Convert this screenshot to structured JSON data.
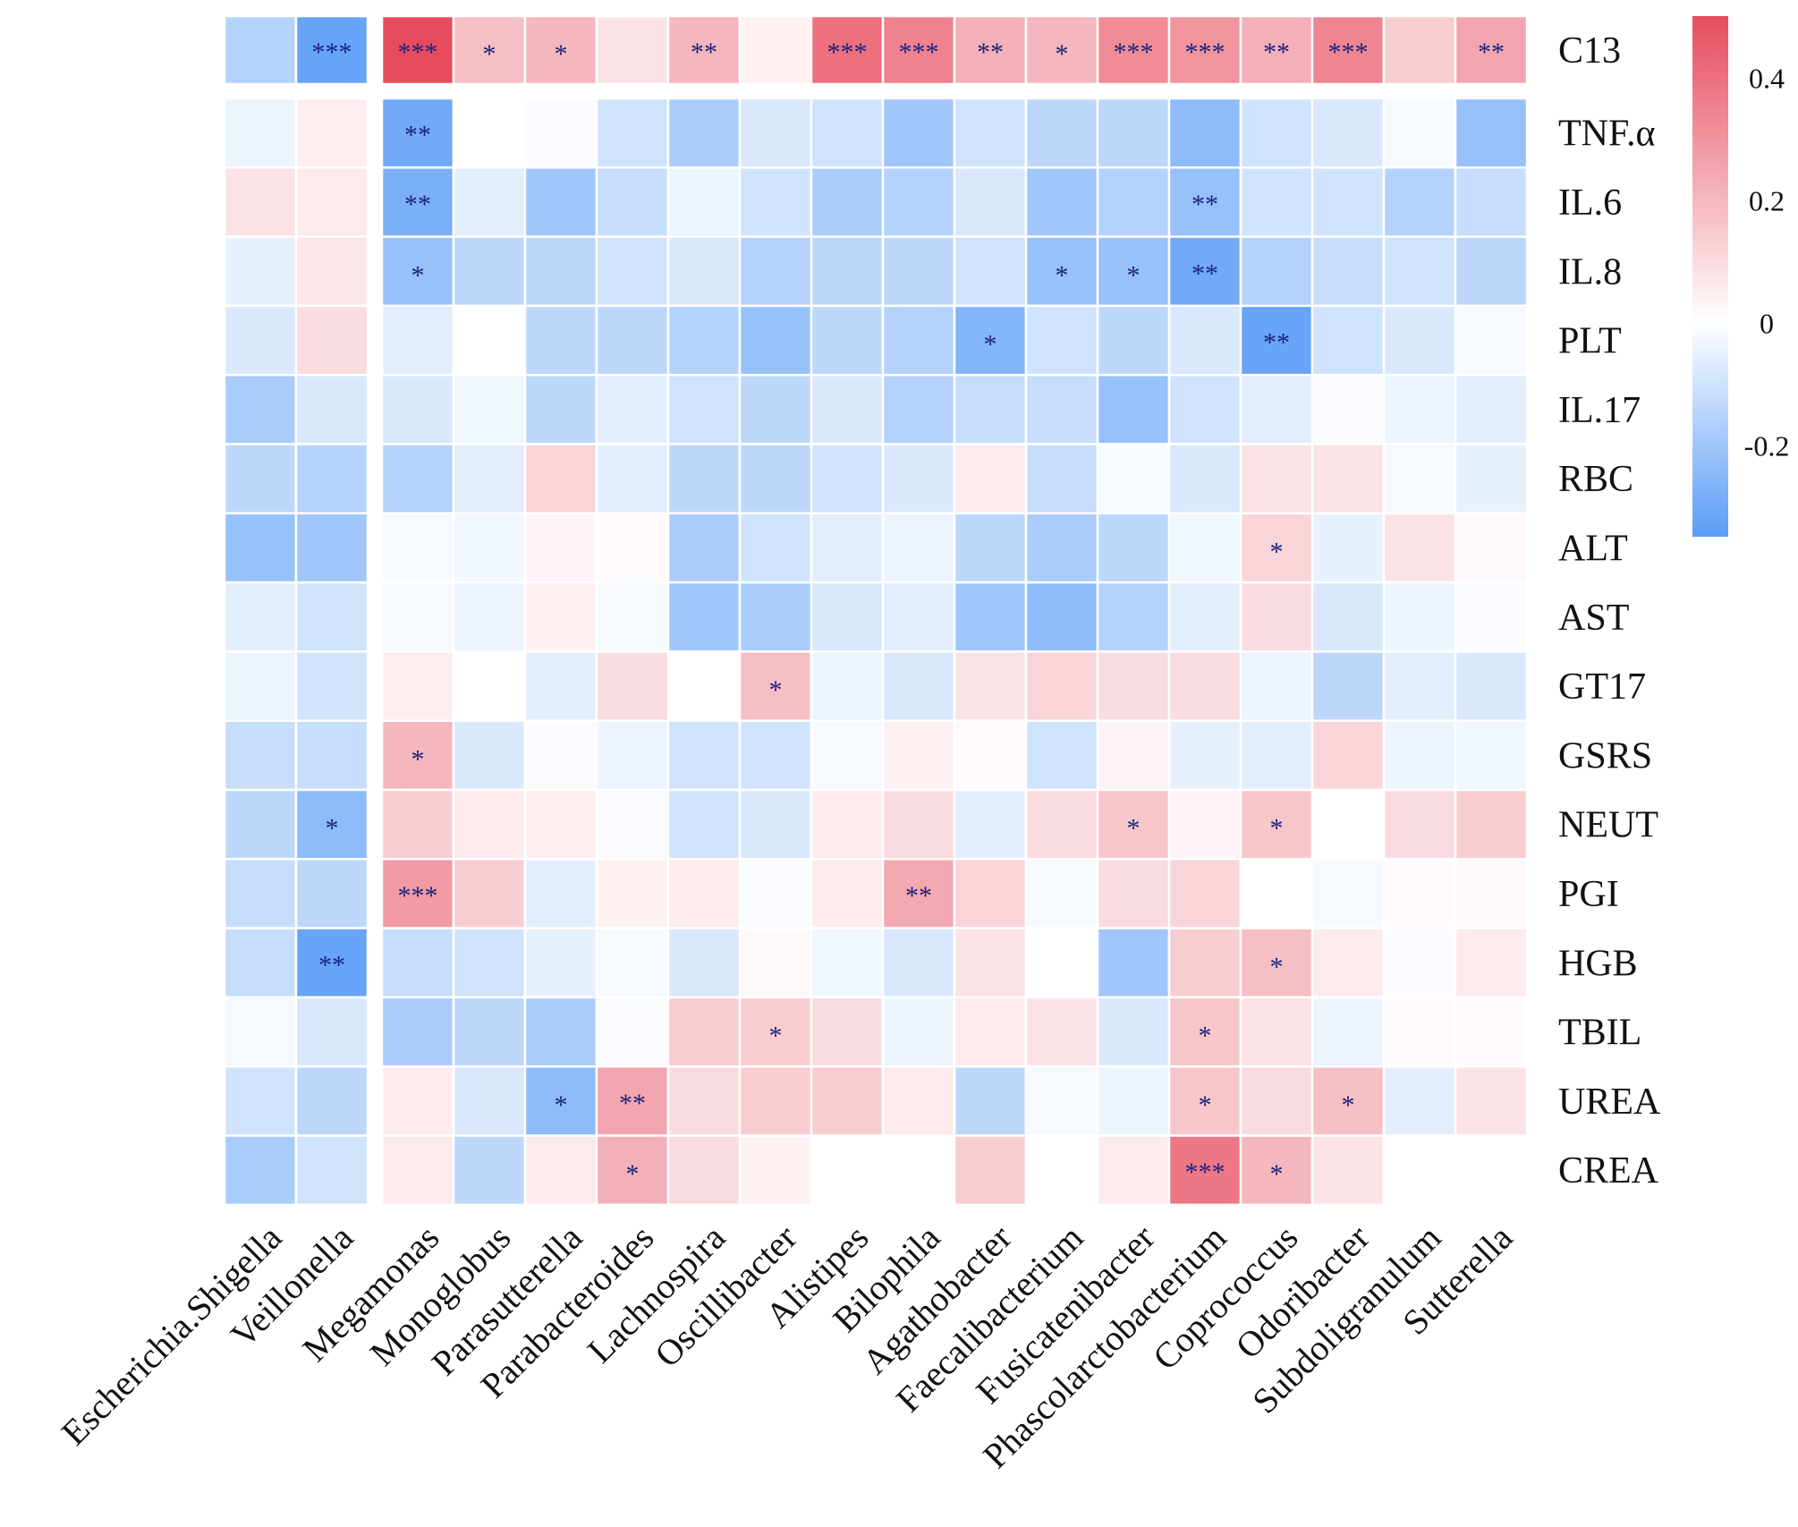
{
  "chart_data": {
    "type": "heatmap",
    "title": "",
    "columns": [
      "Escherichia.Shigella",
      "Veillonella",
      "Megamonas",
      "Monoglobus",
      "Parasutterella",
      "Parabacteroides",
      "Lachnospira",
      "Oscillibacter",
      "Alistipes",
      "Bilophila",
      "Agathobacter",
      "Faecalibacterium",
      "Fusicatenibacter",
      "Phascolarctobacterium",
      "Coprococcus",
      "Odoribacter",
      "Subdoligranulum",
      "Sutterella"
    ],
    "rows": [
      "C13",
      "TNF.α",
      "IL.6",
      "IL.8",
      "PLT",
      "IL.17",
      "RBC",
      "ALT",
      "AST",
      "GT17",
      "GSRS",
      "NEUT",
      "PGI",
      "HGB",
      "TBIL",
      "UREA",
      "CREA"
    ],
    "values": [
      [
        -0.16,
        -0.32,
        0.5,
        0.18,
        0.2,
        0.08,
        0.2,
        0.04,
        0.4,
        0.35,
        0.22,
        0.2,
        0.32,
        0.3,
        0.22,
        0.34,
        0.14,
        0.25
      ],
      [
        -0.04,
        0.05,
        -0.3,
        0.0,
        -0.01,
        -0.1,
        -0.18,
        -0.08,
        -0.1,
        -0.2,
        -0.1,
        -0.14,
        -0.14,
        -0.24,
        -0.1,
        -0.08,
        -0.02,
        -0.22
      ],
      [
        0.08,
        0.06,
        -0.28,
        -0.06,
        -0.2,
        -0.12,
        -0.04,
        -0.1,
        -0.18,
        -0.16,
        -0.08,
        -0.2,
        -0.16,
        -0.22,
        -0.1,
        -0.1,
        -0.16,
        -0.12
      ],
      [
        -0.05,
        0.07,
        -0.22,
        -0.14,
        -0.14,
        -0.1,
        -0.08,
        -0.16,
        -0.14,
        -0.14,
        -0.1,
        -0.22,
        -0.22,
        -0.3,
        -0.16,
        -0.12,
        -0.1,
        -0.14
      ],
      [
        -0.08,
        0.1,
        -0.06,
        0.0,
        -0.14,
        -0.14,
        -0.16,
        -0.22,
        -0.14,
        -0.16,
        -0.26,
        -0.1,
        -0.14,
        -0.08,
        -0.32,
        -0.1,
        -0.08,
        -0.02
      ],
      [
        -0.18,
        -0.08,
        -0.08,
        -0.03,
        -0.14,
        -0.06,
        -0.1,
        -0.14,
        -0.08,
        -0.16,
        -0.12,
        -0.12,
        -0.22,
        -0.1,
        -0.06,
        -0.01,
        -0.04,
        -0.06
      ],
      [
        -0.14,
        -0.16,
        -0.16,
        -0.06,
        0.12,
        -0.06,
        -0.14,
        -0.14,
        -0.1,
        -0.08,
        0.06,
        -0.12,
        -0.02,
        -0.08,
        0.08,
        0.08,
        -0.02,
        -0.05
      ],
      [
        -0.22,
        -0.2,
        -0.02,
        -0.03,
        0.03,
        0.01,
        -0.18,
        -0.1,
        -0.06,
        -0.04,
        -0.14,
        -0.18,
        -0.14,
        -0.03,
        0.12,
        -0.05,
        0.08,
        0.02
      ],
      [
        -0.06,
        -0.1,
        -0.02,
        -0.04,
        0.04,
        -0.02,
        -0.2,
        -0.18,
        -0.08,
        -0.06,
        -0.2,
        -0.24,
        -0.16,
        -0.06,
        0.1,
        -0.08,
        -0.04,
        -0.01
      ],
      [
        -0.04,
        -0.1,
        0.05,
        0.0,
        -0.06,
        0.1,
        0.0,
        0.18,
        -0.04,
        -0.08,
        0.08,
        0.12,
        0.1,
        0.1,
        -0.04,
        -0.14,
        -0.06,
        -0.08
      ],
      [
        -0.12,
        -0.12,
        0.2,
        -0.08,
        -0.01,
        -0.04,
        -0.1,
        -0.1,
        -0.02,
        0.04,
        0.01,
        -0.1,
        0.03,
        -0.05,
        -0.06,
        0.12,
        -0.04,
        -0.03
      ],
      [
        -0.14,
        -0.24,
        0.14,
        0.06,
        0.05,
        -0.01,
        -0.1,
        -0.08,
        0.06,
        0.1,
        -0.06,
        0.1,
        0.16,
        0.03,
        0.16,
        0.0,
        0.1,
        0.14
      ],
      [
        -0.12,
        -0.14,
        0.28,
        0.14,
        -0.06,
        0.04,
        0.06,
        -0.01,
        0.06,
        0.24,
        0.12,
        -0.02,
        0.1,
        0.12,
        0.0,
        -0.02,
        0.01,
        0.02
      ],
      [
        -0.12,
        -0.32,
        -0.12,
        -0.1,
        -0.05,
        -0.02,
        -0.08,
        0.02,
        -0.03,
        -0.08,
        0.08,
        0.0,
        -0.2,
        0.14,
        0.18,
        0.06,
        -0.01,
        0.06
      ],
      [
        -0.02,
        -0.08,
        -0.18,
        -0.14,
        -0.18,
        -0.01,
        0.14,
        0.14,
        0.1,
        -0.04,
        0.06,
        0.08,
        -0.08,
        0.16,
        0.08,
        -0.04,
        0.01,
        0.01
      ],
      [
        -0.1,
        -0.14,
        0.06,
        -0.08,
        -0.24,
        0.25,
        0.1,
        0.14,
        0.14,
        0.06,
        -0.14,
        -0.02,
        -0.04,
        0.16,
        0.1,
        0.18,
        -0.06,
        0.08
      ],
      [
        -0.18,
        -0.1,
        0.06,
        -0.14,
        0.06,
        0.22,
        0.1,
        0.04,
        0.0,
        0.0,
        0.14,
        0.0,
        0.06,
        0.38,
        0.2,
        0.08,
        0.0,
        0.0
      ]
    ],
    "stars": [
      [
        "",
        "***",
        "***",
        "*",
        "*",
        "",
        "**",
        "",
        "***",
        "***",
        "**",
        "*",
        "***",
        "***",
        "**",
        "***",
        "",
        "**"
      ],
      [
        "",
        "",
        "**",
        "",
        "",
        "",
        "",
        "",
        "",
        "",
        "",
        "",
        "",
        "",
        "",
        "",
        "",
        ""
      ],
      [
        "",
        "",
        "**",
        "",
        "",
        "",
        "",
        "",
        "",
        "",
        "",
        "",
        "",
        "**",
        "",
        "",
        "",
        ""
      ],
      [
        "",
        "",
        "*",
        "",
        "",
        "",
        "",
        "",
        "",
        "",
        "",
        "*",
        "*",
        "**",
        "",
        "",
        "",
        ""
      ],
      [
        "",
        "",
        "",
        "",
        "",
        "",
        "",
        "",
        "",
        "",
        "*",
        "",
        "",
        "",
        "**",
        "",
        "",
        ""
      ],
      [
        "",
        "",
        "",
        "",
        "",
        "",
        "",
        "",
        "",
        "",
        "",
        "",
        "",
        "",
        "",
        "",
        "",
        ""
      ],
      [
        "",
        "",
        "",
        "",
        "",
        "",
        "",
        "",
        "",
        "",
        "",
        "",
        "",
        "",
        "",
        "",
        "",
        ""
      ],
      [
        "",
        "",
        "",
        "",
        "",
        "",
        "",
        "",
        "",
        "",
        "",
        "",
        "",
        "",
        "*",
        "",
        "",
        ""
      ],
      [
        "",
        "",
        "",
        "",
        "",
        "",
        "",
        "",
        "",
        "",
        "",
        "",
        "",
        "",
        "",
        "",
        "",
        ""
      ],
      [
        "",
        "",
        "",
        "",
        "",
        "",
        "",
        "*",
        "",
        "",
        "",
        "",
        "",
        "",
        "",
        "",
        "",
        ""
      ],
      [
        "",
        "",
        "*",
        "",
        "",
        "",
        "",
        "",
        "",
        "",
        "",
        "",
        "",
        "",
        "",
        "",
        "",
        ""
      ],
      [
        "",
        "*",
        "",
        "",
        "",
        "",
        "",
        "",
        "",
        "",
        "",
        "",
        "*",
        "",
        "*",
        "",
        "",
        ""
      ],
      [
        "",
        "",
        "***",
        "",
        "",
        "",
        "",
        "",
        "",
        "**",
        "",
        "",
        "",
        "",
        "",
        "",
        "",
        ""
      ],
      [
        "",
        "**",
        "",
        "",
        "",
        "",
        "",
        "",
        "",
        "",
        "",
        "",
        "",
        "",
        "*",
        "",
        "",
        ""
      ],
      [
        "",
        "",
        "",
        "",
        "",
        "",
        "",
        "*",
        "",
        "",
        "",
        "",
        "",
        "*",
        "",
        "",
        "",
        ""
      ],
      [
        "",
        "",
        "",
        "",
        "*",
        "**",
        "",
        "",
        "",
        "",
        "",
        "",
        "",
        "*",
        "",
        "*",
        "",
        ""
      ],
      [
        "",
        "",
        "",
        "",
        "",
        "*",
        "",
        "",
        "",
        "",
        "",
        "",
        "",
        "***",
        "*",
        "",
        "",
        ""
      ]
    ],
    "value_range": [
      -0.35,
      0.5
    ],
    "colorbar": {
      "ticks": [
        0.4,
        0.2,
        0,
        -0.2
      ],
      "tick_labels": [
        "0.4",
        "0.2",
        "0",
        "-0.2"
      ],
      "low_color": "#5a9cf6",
      "mid_color": "#ffffff",
      "high_color": "#e74c5e"
    },
    "xlabel": "",
    "ylabel": "",
    "legend": "right"
  },
  "colors": {
    "grid_line": "#ffffff",
    "star_color": "#1a237e",
    "label_color": "#111111"
  }
}
